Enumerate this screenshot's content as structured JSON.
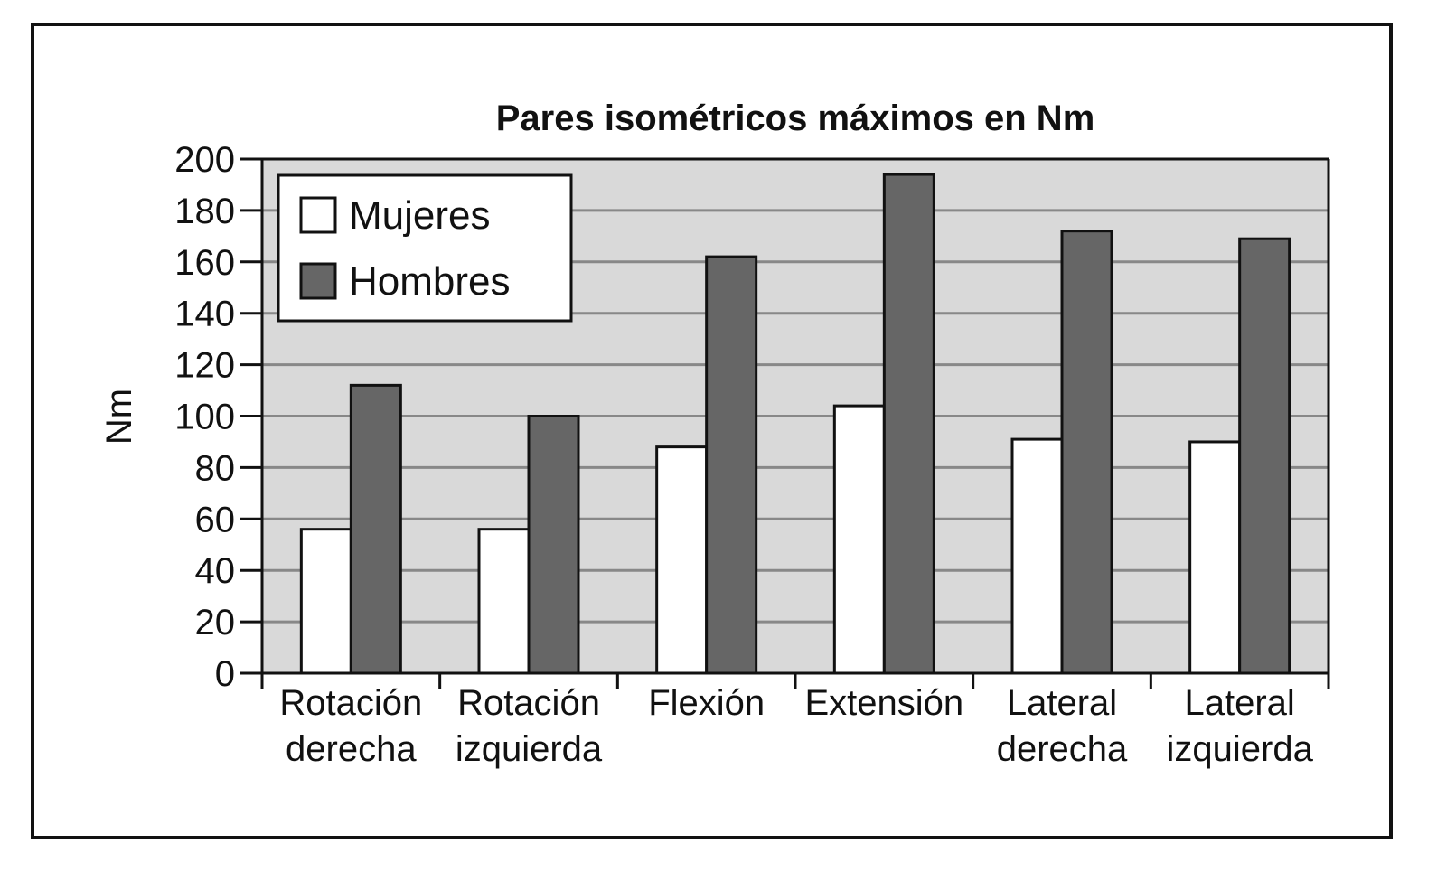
{
  "chart_data": {
    "type": "bar",
    "title": "Pares isométricos máximos en Nm",
    "xlabel": "",
    "ylabel": "Nm",
    "ylim": [
      0,
      200
    ],
    "yticks": [
      "0",
      "20",
      "40",
      "60",
      "80",
      "100",
      "120",
      "140",
      "160",
      "180",
      "200"
    ],
    "grid": true,
    "legend_position": "top-left",
    "categories": [
      [
        "Rotación",
        "derecha"
      ],
      [
        "Rotación",
        "izquierda"
      ],
      [
        "Flexión"
      ],
      [
        "Extensión"
      ],
      [
        "Lateral",
        "derecha"
      ],
      [
        "Lateral",
        "izquierda"
      ]
    ],
    "series": [
      {
        "name": "Mujeres",
        "color": "#ffffff",
        "values": [
          56,
          56,
          88,
          104,
          91,
          90
        ]
      },
      {
        "name": "Hombres",
        "color": "#666666",
        "values": [
          112,
          100,
          162,
          194,
          172,
          169
        ]
      }
    ],
    "plot_background": "#d9d9d9",
    "gridline_color": "#888888"
  }
}
